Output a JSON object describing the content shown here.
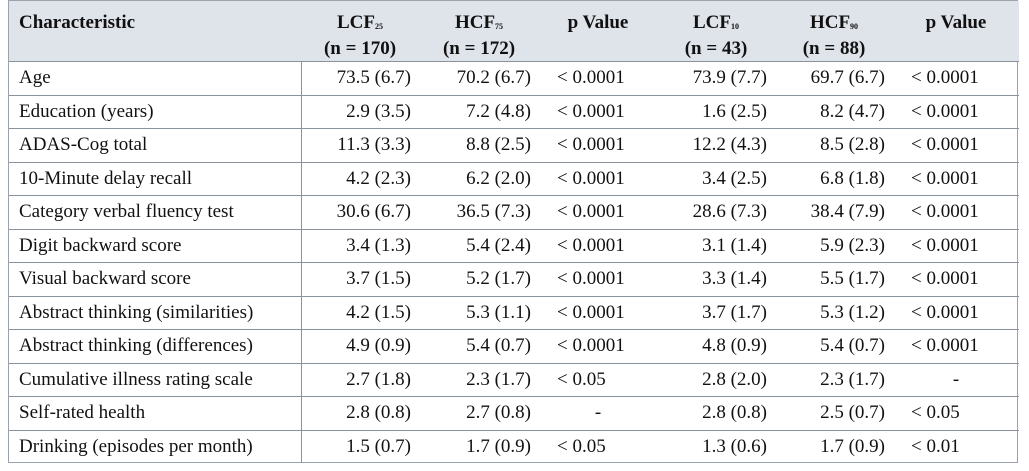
{
  "header": {
    "characteristic": "Characteristic",
    "col1": {
      "name": "LCF",
      "sub": "25",
      "n": "(n = 170)"
    },
    "col2": {
      "name": "HCF",
      "sub": "75",
      "n": "(n = 172)"
    },
    "col3": {
      "name": "p Value"
    },
    "col4": {
      "name": "LCF",
      "sub": "10",
      "n": "(n = 43)"
    },
    "col5": {
      "name": "HCF",
      "sub": "90",
      "n": "(n = 88)"
    },
    "col6": {
      "name": "p Value"
    }
  },
  "rows": [
    [
      "Age",
      "73.5 (6.7)",
      "70.2 (6.7)",
      "< 0.0001",
      "73.9 (7.7)",
      "69.7 (6.7)",
      "< 0.0001"
    ],
    [
      "Education (years)",
      "2.9 (3.5)",
      "7.2 (4.8)",
      "< 0.0001",
      "1.6 (2.5)",
      "8.2 (4.7)",
      "< 0.0001"
    ],
    [
      "ADAS-Cog total",
      "11.3 (3.3)",
      "8.8 (2.5)",
      "< 0.0001",
      "12.2 (4.3)",
      "8.5 (2.8)",
      "< 0.0001"
    ],
    [
      "10-Minute delay recall",
      "4.2 (2.3)",
      "6.2 (2.0)",
      "< 0.0001",
      "3.4 (2.5)",
      "6.8 (1.8)",
      "< 0.0001"
    ],
    [
      "Category verbal fluency test",
      "30.6 (6.7)",
      "36.5 (7.3)",
      "< 0.0001",
      "28.6 (7.3)",
      "38.4 (7.9)",
      "< 0.0001"
    ],
    [
      "Digit backward score",
      "3.4 (1.3)",
      "5.4 (2.4)",
      "< 0.0001",
      "3.1 (1.4)",
      "5.9 (2.3)",
      "< 0.0001"
    ],
    [
      "Visual backward score",
      "3.7 (1.5)",
      "5.2 (1.7)",
      "< 0.0001",
      "3.3 (1.4)",
      "5.5 (1.7)",
      "< 0.0001"
    ],
    [
      "Abstract thinking (similarities)",
      "4.2 (1.5)",
      "5.3 (1.1)",
      "< 0.0001",
      "3.7 (1.7)",
      "5.3 (1.2)",
      "< 0.0001"
    ],
    [
      "Abstract thinking (differences)",
      "4.9 (0.9)",
      "5.4 (0.7)",
      "< 0.0001",
      "4.8 (0.9)",
      "5.4 (0.7)",
      "< 0.0001"
    ],
    [
      "Cumulative illness rating scale",
      "2.7 (1.8)",
      "2.3 (1.7)",
      "< 0.05",
      "2.8 (2.0)",
      "2.3 (1.7)",
      "-"
    ],
    [
      "Self-rated health",
      "2.8 (0.8)",
      "2.7 (0.8)",
      "-",
      "2.8 (0.8)",
      "2.5 (0.7)",
      "< 0.05"
    ],
    [
      "Drinking (episodes per month)",
      "1.5 (0.7)",
      "1.7 (0.9)",
      "< 0.05",
      "1.3 (0.6)",
      "1.7 (0.9)",
      "< 0.01"
    ]
  ]
}
